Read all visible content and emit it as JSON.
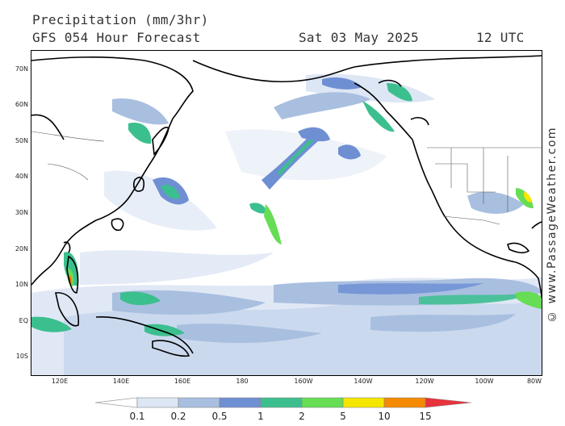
{
  "header": {
    "title": "Precipitation (mm/3hr)",
    "subtitle": "GFS 054 Hour Forecast",
    "date": "Sat 03 May 2025",
    "time": "12 UTC"
  },
  "map": {
    "lat_labels": [
      "70N",
      "60N",
      "50N",
      "40N",
      "30N",
      "20N",
      "10N",
      "EQ",
      "10S"
    ],
    "lon_labels": [
      "120E",
      "140E",
      "160E",
      "180",
      "160W",
      "140W",
      "120W",
      "100W",
      "80W"
    ]
  },
  "legend": {
    "labels": [
      "0.1",
      "0.2",
      "0.5",
      "1",
      "2",
      "5",
      "10",
      "15"
    ],
    "colors": [
      "#ffffff",
      "#dde6f4",
      "#a9bfe0",
      "#6f8fd3",
      "#3cbf8e",
      "#66dd55",
      "#f5e600",
      "#f58a00",
      "#e8323c"
    ]
  },
  "credit": "© www.PassageWeather.com"
}
